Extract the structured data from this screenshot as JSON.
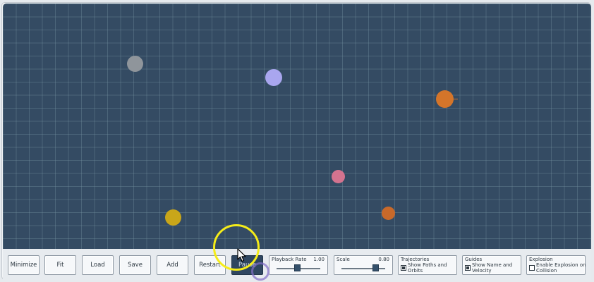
{
  "toolbar": {
    "minimize_label": "Minimize",
    "fit_label": "Fit",
    "load_label": "Load",
    "save_label": "Save",
    "add_label": "Add",
    "restart_label": "Restart",
    "pause_label": "Pause"
  },
  "playback_rate": {
    "label": "Playback Rate",
    "value": "1.00",
    "fraction": 0.45
  },
  "scale": {
    "label": "Scale",
    "value": "0.80",
    "fraction": 0.8
  },
  "trajectories": {
    "title": "Trajectories",
    "option_label": "Show Paths and Orbits",
    "checked": true
  },
  "guides": {
    "title": "Guides",
    "option_label": "Show Name and Velocity",
    "checked": true
  },
  "explosion": {
    "title": "Explosion",
    "option_label": "Enable Explosion on Collision",
    "checked": false
  },
  "bodies": [
    {
      "name": "gray body",
      "color": "#8f959b"
    },
    {
      "name": "lavender body",
      "color": "#a9a6ef"
    },
    {
      "name": "orange body large",
      "color": "#d4752a"
    },
    {
      "name": "pink body",
      "color": "#d4738f"
    },
    {
      "name": "yellow body",
      "color": "#c9a619"
    },
    {
      "name": "orange body small",
      "color": "#c8692a"
    }
  ],
  "colors": {
    "background": "#344b63",
    "grid": "#5e7686",
    "cursor_highlight": "#f5ec19"
  },
  "icons": {
    "cursor": "mouse-pointer-icon"
  }
}
